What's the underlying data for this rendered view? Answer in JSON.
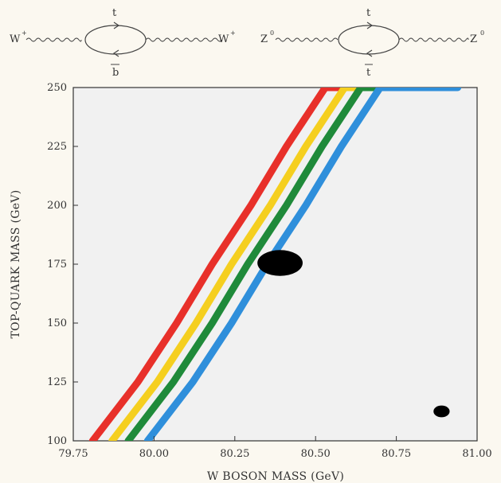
{
  "diagrams": {
    "left": {
      "external_left": "W",
      "external_left_sup": "+",
      "external_right": "W",
      "external_right_sup": "+",
      "loop_top": "t",
      "loop_bottom": "b"
    },
    "right": {
      "external_left": "Z",
      "external_left_sup": "0",
      "external_right": "Z",
      "external_right_sup": "0",
      "loop_top": "t",
      "loop_bottom": "t"
    }
  },
  "chart_data": {
    "type": "line",
    "xlabel": "W BOSON MASS (GeV)",
    "ylabel": "TOP-QUARK MASS (GeV)",
    "xlim": [
      79.75,
      81.0
    ],
    "ylim": [
      100,
      250
    ],
    "x_ticks": [
      "79.75",
      "80.00",
      "80.25",
      "80.50",
      "80.75",
      "81.00"
    ],
    "y_ticks": [
      "100",
      "125",
      "150",
      "175",
      "200",
      "225",
      "250"
    ],
    "grid": false,
    "series": [
      {
        "color": "#e8302a",
        "points": [
          [
            79.81,
            100
          ],
          [
            79.95,
            125
          ],
          [
            80.07,
            150
          ],
          [
            80.18,
            175
          ],
          [
            80.3,
            200
          ],
          [
            80.41,
            225
          ],
          [
            80.53,
            250
          ],
          [
            80.74,
            250
          ]
        ]
      },
      {
        "color": "#f5cf1f",
        "points": [
          [
            79.87,
            100
          ],
          [
            80.01,
            125
          ],
          [
            80.13,
            150
          ],
          [
            80.24,
            175
          ],
          [
            80.36,
            200
          ],
          [
            80.47,
            225
          ],
          [
            80.59,
            250
          ],
          [
            80.81,
            250
          ]
        ]
      },
      {
        "color": "#1f8a3a",
        "points": [
          [
            79.92,
            100
          ],
          [
            80.06,
            125
          ],
          [
            80.18,
            150
          ],
          [
            80.29,
            175
          ],
          [
            80.41,
            200
          ],
          [
            80.52,
            225
          ],
          [
            80.64,
            250
          ],
          [
            80.87,
            250
          ]
        ]
      },
      {
        "color": "#2f8fdb",
        "points": [
          [
            79.98,
            100
          ],
          [
            80.12,
            125
          ],
          [
            80.24,
            150
          ],
          [
            80.35,
            175
          ],
          [
            80.47,
            200
          ],
          [
            80.58,
            225
          ],
          [
            80.7,
            250
          ],
          [
            80.94,
            250
          ]
        ]
      }
    ],
    "measurements": [
      {
        "x": 80.39,
        "y": 175.5,
        "x_err": 0.07,
        "y_err": 5.5
      },
      {
        "x": 80.89,
        "y": 112.5,
        "x_err": 0.025,
        "y_err": 2.5
      }
    ]
  }
}
